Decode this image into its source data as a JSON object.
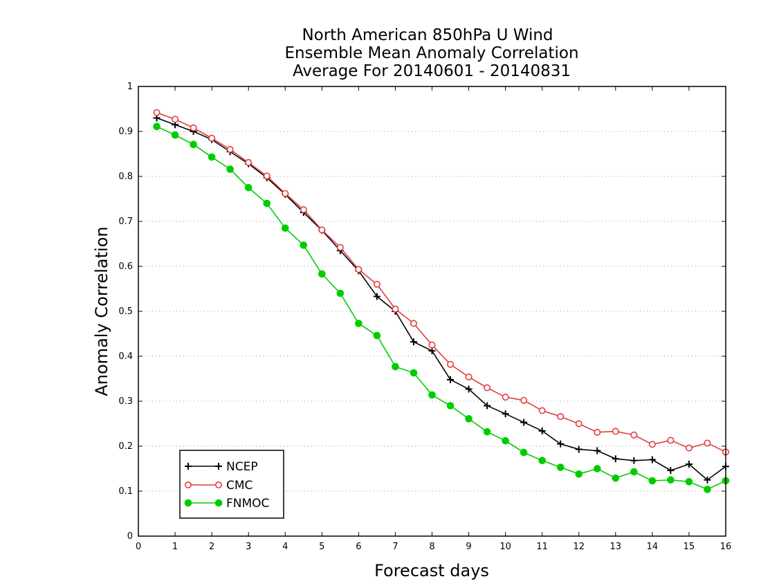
{
  "chart_data": {
    "type": "line",
    "title_lines": [
      "North American 850hPa U Wind",
      "Ensemble Mean Anomaly Correlation",
      "Average For 20140601 - 20140831"
    ],
    "xlabel": "Forecast days",
    "ylabel": "Anomaly Correlation",
    "xlim": [
      0,
      16
    ],
    "ylim": [
      0,
      1
    ],
    "xticks": [
      0,
      1,
      2,
      3,
      4,
      5,
      6,
      7,
      8,
      9,
      10,
      11,
      12,
      13,
      14,
      15,
      16
    ],
    "yticks": [
      0,
      0.1,
      0.2,
      0.3,
      0.4,
      0.5,
      0.6,
      0.7,
      0.8,
      0.9,
      1
    ],
    "grid": "horizontal-dotted",
    "legend_position": "bottom-left",
    "x": [
      0.5,
      1,
      1.5,
      2,
      2.5,
      3,
      3.5,
      4,
      4.5,
      5,
      5.5,
      6,
      6.5,
      7,
      7.5,
      8,
      8.5,
      9,
      9.5,
      10,
      10.5,
      11,
      11.5,
      12,
      12.5,
      13,
      13.5,
      14,
      14.5,
      15,
      15.5,
      16
    ],
    "series": [
      {
        "name": "NCEP",
        "color": "#000000",
        "marker": "plus",
        "values": [
          0.93,
          0.915,
          0.9,
          0.882,
          0.855,
          0.828,
          0.797,
          0.76,
          0.72,
          0.68,
          0.635,
          0.59,
          0.533,
          0.5,
          0.432,
          0.412,
          0.348,
          0.327,
          0.29,
          0.272,
          0.253,
          0.234,
          0.205,
          0.193,
          0.19,
          0.172,
          0.168,
          0.17,
          0.146,
          0.16,
          0.125,
          0.155
        ]
      },
      {
        "name": "CMC",
        "color": "#e03c3c",
        "marker": "open-circle",
        "values": [
          0.942,
          0.927,
          0.908,
          0.885,
          0.86,
          0.831,
          0.801,
          0.762,
          0.726,
          0.681,
          0.642,
          0.593,
          0.56,
          0.505,
          0.473,
          0.425,
          0.382,
          0.354,
          0.33,
          0.309,
          0.302,
          0.279,
          0.266,
          0.25,
          0.231,
          0.233,
          0.225,
          0.204,
          0.213,
          0.196,
          0.207,
          0.187
        ]
      },
      {
        "name": "FNMOC",
        "color": "#00cc00",
        "marker": "filled-circle",
        "values": [
          0.911,
          0.892,
          0.871,
          0.843,
          0.816,
          0.775,
          0.74,
          0.685,
          0.647,
          0.583,
          0.54,
          0.473,
          0.446,
          0.377,
          0.363,
          0.314,
          0.29,
          0.261,
          0.232,
          0.212,
          0.186,
          0.168,
          0.153,
          0.138,
          0.15,
          0.129,
          0.143,
          0.123,
          0.125,
          0.121,
          0.104,
          0.123
        ]
      }
    ]
  }
}
